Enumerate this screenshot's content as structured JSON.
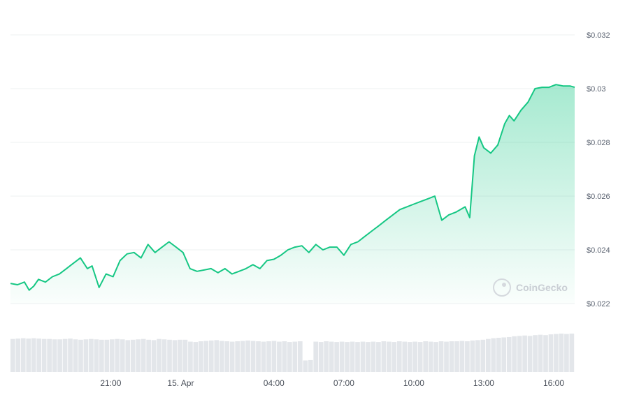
{
  "chart_data": {
    "type": "area",
    "title": "",
    "xlabel": "",
    "ylabel": "",
    "ylim": [
      0.022,
      0.032
    ],
    "y_ticks": [
      0.022,
      0.024,
      0.026,
      0.028,
      0.03,
      0.032
    ],
    "y_tick_labels": [
      "$0.022",
      "$0.024",
      "$0.026",
      "$0.028",
      "$0.03",
      "$0.032"
    ],
    "x_tick_labels": [
      "21:00",
      "15. Apr",
      "04:00",
      "07:00",
      "10:00",
      "13:00",
      "16:00"
    ],
    "x_tick_hours": [
      21,
      24,
      28,
      31,
      34,
      37,
      40
    ],
    "x_range_hours": [
      16.7,
      40.9
    ],
    "grid": true,
    "legend": "none",
    "line_color": "#16c784",
    "watermark": "CoinGecko",
    "series": [
      {
        "x": [
          16.7,
          17.0,
          17.3,
          17.5,
          17.7,
          17.9,
          18.2,
          18.5,
          18.8,
          19.1,
          19.4,
          19.7,
          20.0,
          20.2,
          20.5,
          20.8,
          21.1,
          21.4,
          21.7,
          22.0,
          22.3,
          22.6,
          22.9,
          23.2,
          23.5,
          23.8,
          24.1,
          24.4,
          24.7,
          25.0,
          25.3,
          25.6,
          25.9,
          26.2,
          26.5,
          26.8,
          27.1,
          27.4,
          27.7,
          28.0,
          28.3,
          28.6,
          28.9,
          29.2,
          29.5,
          29.8,
          30.1,
          30.4,
          30.7,
          31.0,
          31.3,
          31.6,
          31.9,
          32.2,
          32.5,
          32.8,
          33.1,
          33.4,
          33.7,
          34.0,
          34.3,
          34.6,
          34.9,
          35.2,
          35.5,
          35.8,
          36.0,
          36.2,
          36.4,
          36.6,
          36.8,
          37.0,
          37.3,
          37.6,
          37.9,
          38.1,
          38.3,
          38.6,
          38.9,
          39.2,
          39.5,
          39.8,
          40.1,
          40.4,
          40.7,
          40.9
        ],
        "values": [
          0.02275,
          0.0227,
          0.0228,
          0.0225,
          0.02265,
          0.0229,
          0.0228,
          0.023,
          0.0231,
          0.0233,
          0.0235,
          0.0237,
          0.0233,
          0.0234,
          0.0226,
          0.0231,
          0.023,
          0.0236,
          0.02385,
          0.0239,
          0.0237,
          0.0242,
          0.0239,
          0.0241,
          0.0243,
          0.0241,
          0.0239,
          0.0233,
          0.0232,
          0.02325,
          0.0233,
          0.02315,
          0.0233,
          0.0231,
          0.0232,
          0.0233,
          0.02345,
          0.0233,
          0.0236,
          0.02365,
          0.0238,
          0.024,
          0.0241,
          0.02415,
          0.0239,
          0.0242,
          0.024,
          0.0241,
          0.0241,
          0.0238,
          0.0242,
          0.0243,
          0.0245,
          0.0247,
          0.0249,
          0.0251,
          0.0253,
          0.0255,
          0.0256,
          0.0257,
          0.0258,
          0.0259,
          0.026,
          0.0251,
          0.0253,
          0.0254,
          0.0255,
          0.0256,
          0.0252,
          0.0275,
          0.0282,
          0.0278,
          0.0276,
          0.0279,
          0.0287,
          0.029,
          0.0288,
          0.0292,
          0.0295,
          0.03,
          0.03005,
          0.03005,
          0.03015,
          0.0301,
          0.0301,
          0.03005
        ]
      }
    ],
    "volume": {
      "x_start_hours": 16.7,
      "x_end_hours": 40.9,
      "values": [
        0.86,
        0.87,
        0.88,
        0.87,
        0.88,
        0.87,
        0.86,
        0.86,
        0.85,
        0.85,
        0.86,
        0.87,
        0.85,
        0.84,
        0.85,
        0.86,
        0.85,
        0.84,
        0.84,
        0.85,
        0.86,
        0.85,
        0.83,
        0.84,
        0.85,
        0.86,
        0.84,
        0.83,
        0.86,
        0.85,
        0.84,
        0.83,
        0.84,
        0.84,
        0.79,
        0.78,
        0.8,
        0.81,
        0.82,
        0.83,
        0.81,
        0.8,
        0.79,
        0.8,
        0.81,
        0.82,
        0.81,
        0.8,
        0.79,
        0.8,
        0.81,
        0.79,
        0.8,
        0.78,
        0.79,
        0.8,
        0.3,
        0.31,
        0.79,
        0.78,
        0.8,
        0.79,
        0.78,
        0.79,
        0.78,
        0.79,
        0.78,
        0.79,
        0.78,
        0.79,
        0.78,
        0.8,
        0.79,
        0.78,
        0.8,
        0.79,
        0.78,
        0.79,
        0.78,
        0.8,
        0.79,
        0.78,
        0.8,
        0.79,
        0.8,
        0.8,
        0.81,
        0.8,
        0.82,
        0.83,
        0.84,
        0.86,
        0.88,
        0.89,
        0.9,
        0.91,
        0.93,
        0.94,
        0.95,
        0.94,
        0.96,
        0.97,
        0.96,
        0.98,
        0.99,
        1.0,
        0.99,
        1.0
      ]
    }
  }
}
